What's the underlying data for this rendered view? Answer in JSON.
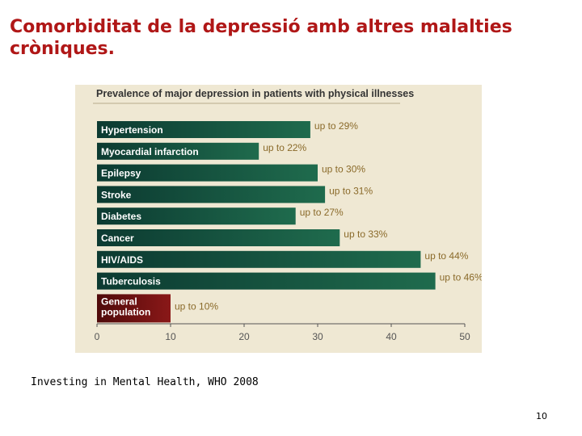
{
  "slide": {
    "title": "Comorbiditat de la depressió amb altres malalties cròniques.",
    "source": "Investing in Mental Health, WHO 2008",
    "page_number": "10"
  },
  "colors": {
    "title": "#b01717",
    "panel_background": "#efe8d3",
    "illness_bar_dark": "#0c3a31",
    "illness_bar_light": "#1f6b4d",
    "reference_bar_dark": "#4f0a0a",
    "reference_bar_light": "#8a1818",
    "value_label": "#8a6a2a",
    "axis": "#555555"
  },
  "chart_data": {
    "type": "bar",
    "orientation": "horizontal",
    "title": "Prevalence of major depression in patients with physical illnesses",
    "categories": [
      "Hypertension",
      "Myocardial infarction",
      "Epilepsy",
      "Stroke",
      "Diabetes",
      "Cancer",
      "HIV/AIDS",
      "Tuberculosis",
      "General population"
    ],
    "values": [
      29,
      22,
      30,
      31,
      27,
      33,
      44,
      46,
      10
    ],
    "value_labels": [
      "up to 29%",
      "up to 22%",
      "up to 30%",
      "up to 31%",
      "up to 27%",
      "up to 33%",
      "up to 44%",
      "up to 46%",
      "up to 10%"
    ],
    "reference_category": "General population",
    "xlim": [
      0,
      50
    ],
    "xticks": [
      0,
      10,
      20,
      30,
      40,
      50
    ],
    "xlabel": "",
    "ylabel": "",
    "grid": false,
    "legend": "none"
  }
}
